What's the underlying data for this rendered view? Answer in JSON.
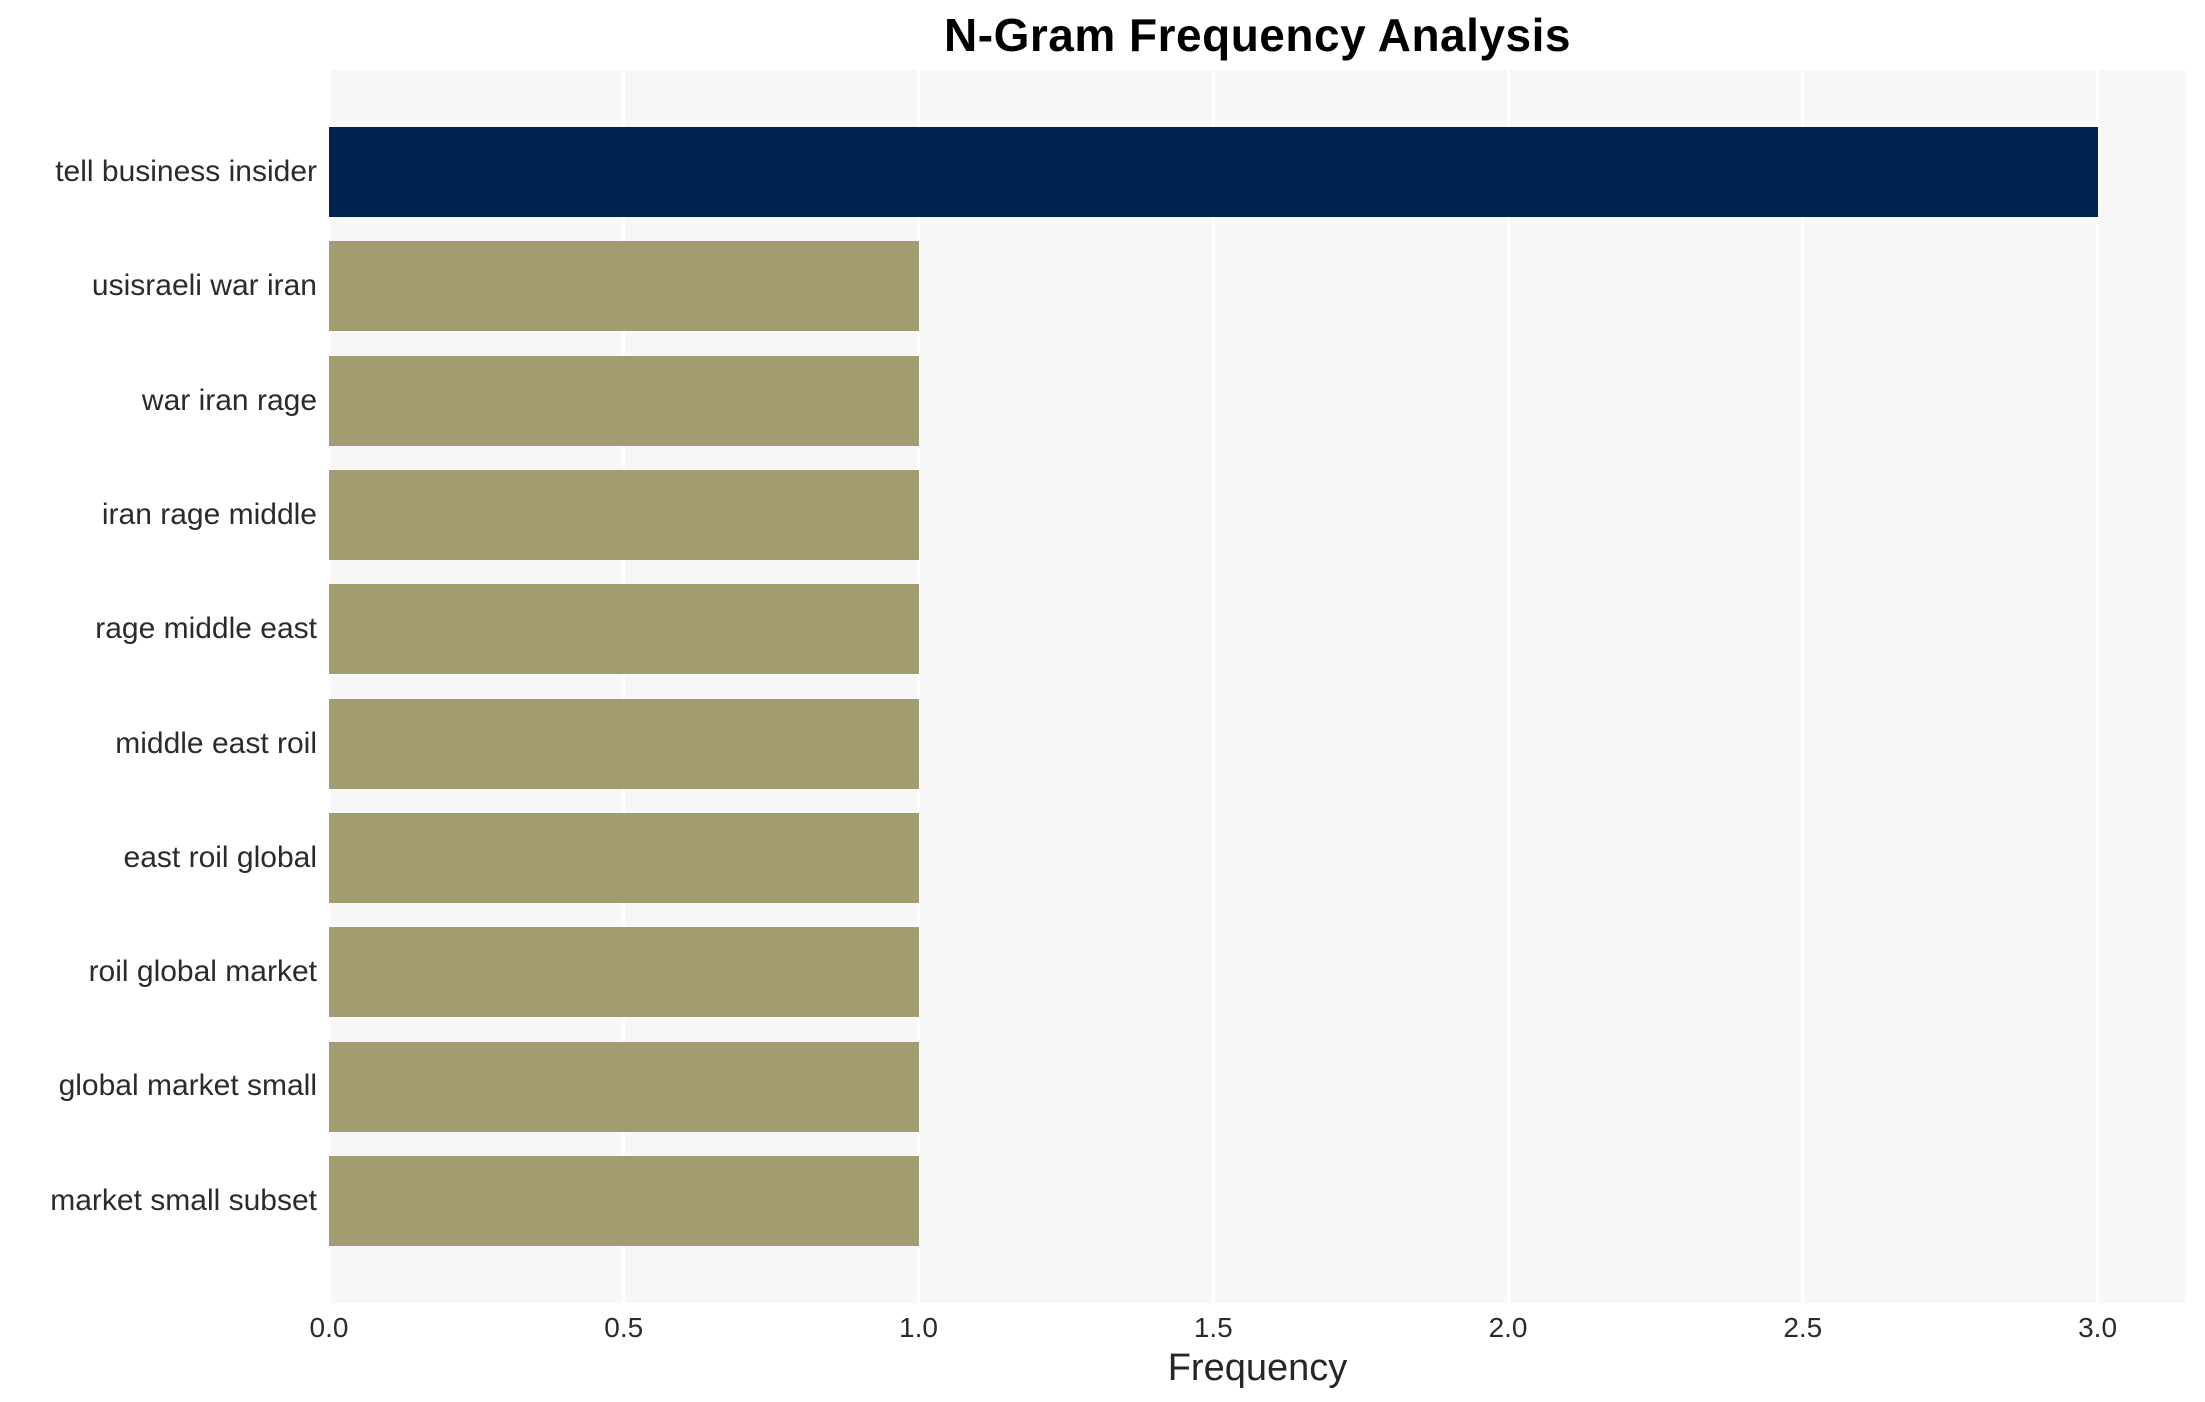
{
  "figure": {
    "title": "N-Gram Frequency Analysis"
  },
  "chart_data": {
    "type": "bar",
    "orientation": "horizontal",
    "title": "N-Gram Frequency Analysis",
    "xlabel": "Frequency",
    "ylabel": "",
    "categories": [
      "tell business insider",
      "usisraeli war iran",
      "war iran rage",
      "iran rage middle",
      "rage middle east",
      "middle east roil",
      "east roil global",
      "roil global market",
      "global market small",
      "market small subset"
    ],
    "values": [
      3,
      1,
      1,
      1,
      1,
      1,
      1,
      1,
      1,
      1
    ],
    "xlim": [
      0,
      3.15
    ],
    "xticks": [
      0,
      0.5,
      1,
      1.5,
      2,
      2.5,
      3
    ],
    "xtick_labels": [
      "0.0",
      "0.5",
      "1.0",
      "1.5",
      "2.0",
      "2.5",
      "3.0"
    ],
    "grid": true,
    "grid_axis": "x",
    "legend": false,
    "bar_colors": [
      "#01234f",
      "#a49c71",
      "#a49c71",
      "#a49c71",
      "#a49c71",
      "#a49c71",
      "#a49c71",
      "#a49c71",
      "#a49c71",
      "#a49c71"
    ],
    "colors": {
      "highlight_bar": "#01234f",
      "default_bar": "#a49c71",
      "plot_background": "#f7f7f7",
      "figure_background": "#ffffff",
      "grid_line": "#ffffff",
      "tick_text": "#2b2b2b",
      "title_text": "#000000"
    }
  }
}
